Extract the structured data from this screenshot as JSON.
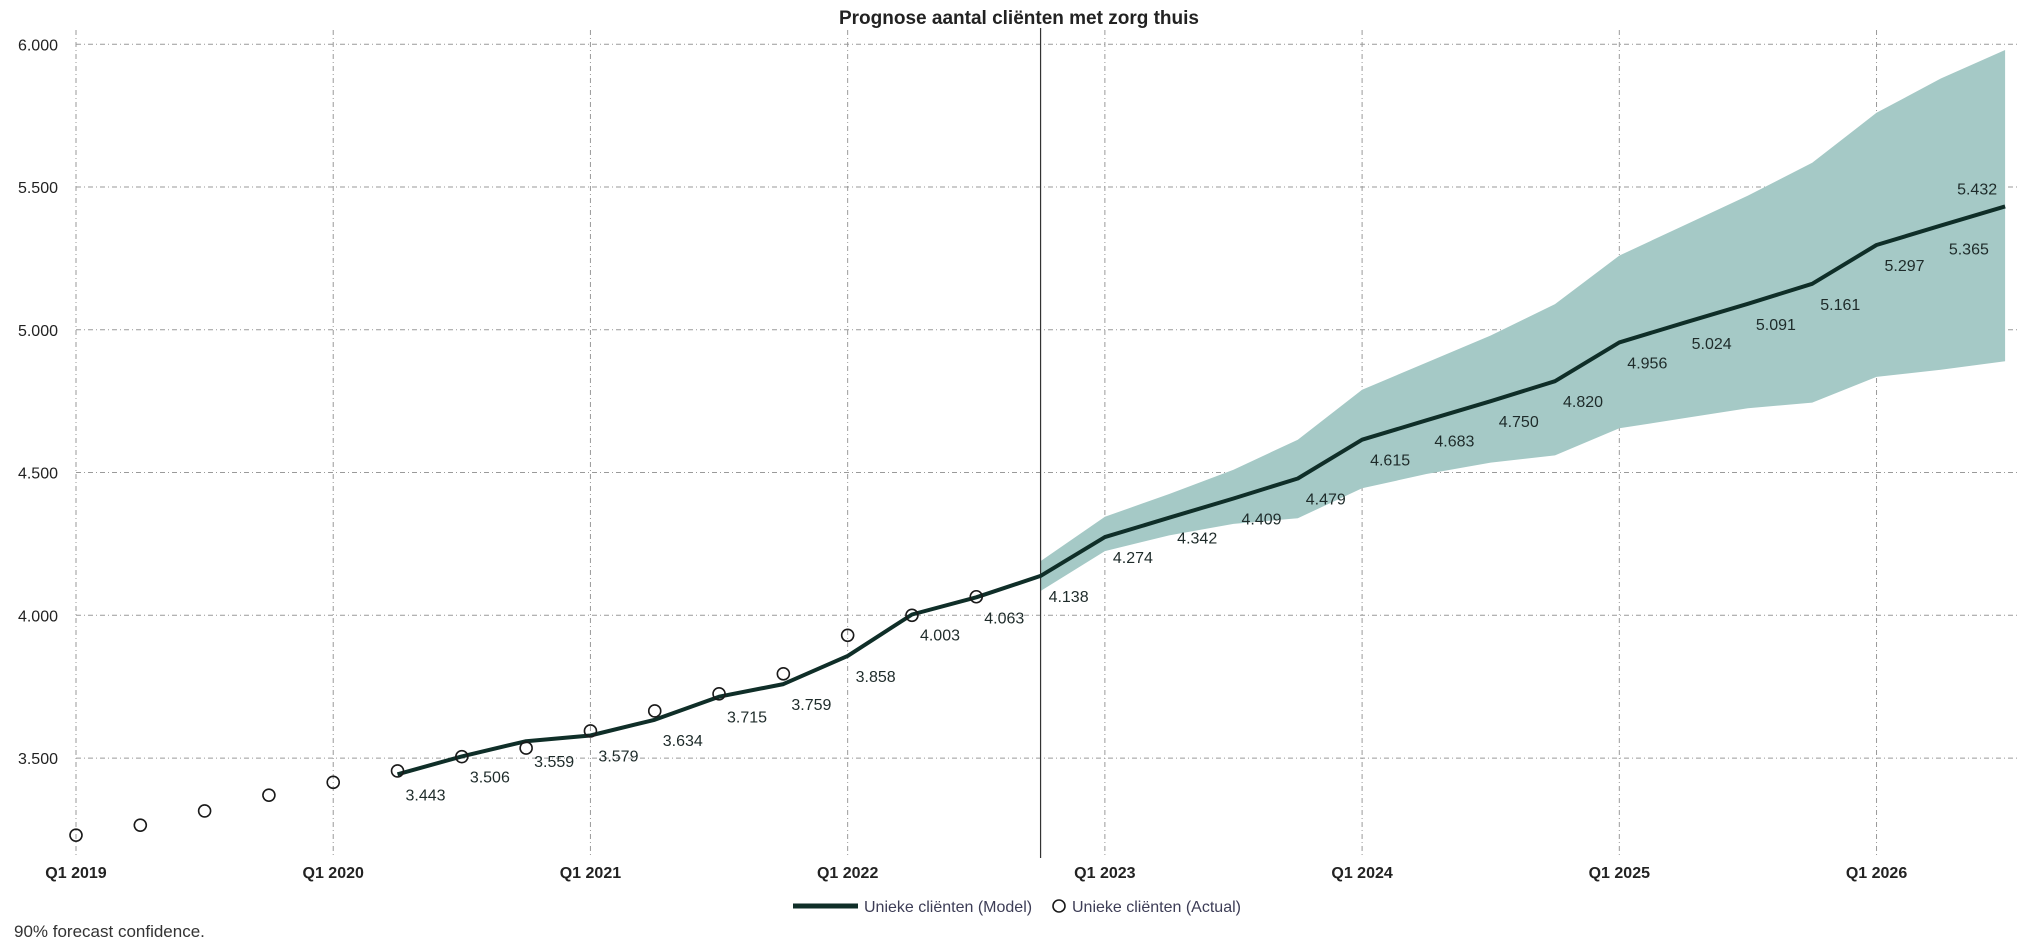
{
  "chart_data": {
    "type": "line",
    "title": "Prognose aantal cliënten met zorg thuis",
    "xlabel": "",
    "ylabel": "",
    "ylim": [
      3150,
      6050
    ],
    "yticks": [
      3500,
      4000,
      4500,
      5000,
      5500,
      6000
    ],
    "ytick_labels": [
      "3.500",
      "4.000",
      "4.500",
      "5.000",
      "5.500",
      "6.000"
    ],
    "x_unit": "quarter index (0 = Q1 2019)",
    "xlim": [
      0,
      30.2
    ],
    "xticks": [
      0,
      4,
      8,
      12,
      16,
      20,
      24,
      28
    ],
    "xtick_labels": [
      "Q1 2019",
      "Q1 2020",
      "Q1 2021",
      "Q1 2022",
      "Q1 2023",
      "Q1 2024",
      "Q1 2025",
      "Q1 2026"
    ],
    "forecast_start": 15,
    "grid": true,
    "legend_position": "bottom-center",
    "colors": {
      "model": "#0f2e28",
      "band": "#a5c9c6",
      "marker": "#1a1a1a",
      "grid": "#9a9a9a"
    },
    "series": [
      {
        "name": "Unieke cliënten (Model)",
        "style": "line",
        "x": [
          5,
          6,
          7,
          8,
          9,
          10,
          11,
          12,
          13,
          14,
          15,
          16,
          17,
          18,
          19,
          20,
          21,
          22,
          23,
          24,
          25,
          26,
          27,
          28,
          29,
          30
        ],
        "values": [
          3443,
          3506,
          3559,
          3579,
          3634,
          3715,
          3759,
          3858,
          4003,
          4063,
          4138,
          4274,
          4342,
          4409,
          4479,
          4615,
          4683,
          4750,
          4820,
          4956,
          5024,
          5091,
          5161,
          5297,
          5365,
          5432
        ],
        "labels": [
          "3.443",
          "3.506",
          "3.559",
          "3.579",
          "3.634",
          "3.715",
          "3.759",
          "3.858",
          "4.003",
          "4.063",
          "4.138",
          "4.274",
          "4.342",
          "4.409",
          "4.479",
          "4.615",
          "4.683",
          "4.750",
          "4.820",
          "4.956",
          "5.024",
          "5.091",
          "5.161",
          "5.297",
          "5.365",
          "5.432"
        ]
      },
      {
        "name": "Unieke cliënten (Actual)",
        "style": "marker",
        "x": [
          0,
          1,
          2,
          3,
          4,
          5,
          6,
          7,
          8,
          9,
          10,
          11,
          12,
          13,
          14
        ],
        "values": [
          3230,
          3265,
          3315,
          3370,
          3415,
          3455,
          3505,
          3535,
          3595,
          3665,
          3725,
          3795,
          3930,
          4000,
          4065
        ]
      }
    ],
    "confidence_band": {
      "x": [
        15,
        16,
        17,
        18,
        19,
        20,
        21,
        22,
        23,
        24,
        25,
        26,
        27,
        28,
        29,
        30
      ],
      "upper": [
        4190,
        4345,
        4425,
        4510,
        4615,
        4790,
        4885,
        4980,
        5090,
        5260,
        5365,
        5470,
        5585,
        5760,
        5880,
        5980
      ],
      "lower": [
        4085,
        4225,
        4280,
        4320,
        4340,
        4445,
        4495,
        4535,
        4560,
        4655,
        4690,
        4725,
        4745,
        4835,
        4860,
        4890
      ]
    },
    "footnote": "90% forecast confidence."
  }
}
